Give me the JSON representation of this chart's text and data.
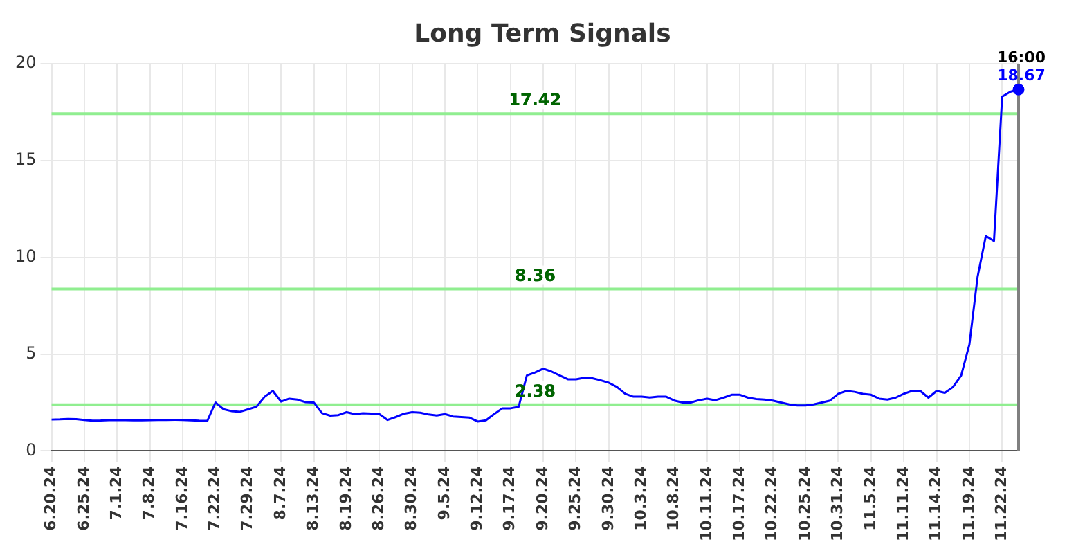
{
  "chart_data": {
    "type": "line",
    "title": "Long Term Signals",
    "categories": [
      "6.20.24",
      null,
      null,
      null,
      "6.25.24",
      null,
      null,
      null,
      "7.1.24",
      null,
      null,
      null,
      "7.8.24",
      null,
      null,
      null,
      "7.16.24",
      null,
      null,
      null,
      "7.22.24",
      null,
      null,
      null,
      "7.29.24",
      null,
      null,
      null,
      "8.7.24",
      null,
      null,
      null,
      "8.13.24",
      null,
      null,
      null,
      "8.19.24",
      null,
      null,
      null,
      "8.26.24",
      null,
      null,
      null,
      "8.30.24",
      null,
      null,
      null,
      "9.5.24",
      null,
      null,
      null,
      "9.12.24",
      null,
      null,
      null,
      "9.17.24",
      null,
      null,
      null,
      "9.20.24",
      null,
      null,
      null,
      "9.25.24",
      null,
      null,
      null,
      "9.30.24",
      null,
      null,
      null,
      "10.3.24",
      null,
      null,
      null,
      "10.8.24",
      null,
      null,
      null,
      "10.11.24",
      null,
      null,
      null,
      "10.17.24",
      null,
      null,
      null,
      "10.22.24",
      null,
      null,
      null,
      "10.25.24",
      null,
      null,
      null,
      "10.31.24",
      null,
      null,
      null,
      "11.5.24",
      null,
      null,
      null,
      "11.11.24",
      null,
      null,
      null,
      "11.14.24",
      null,
      null,
      null,
      "11.19.24",
      null,
      null,
      null,
      "11.22.24",
      null,
      null
    ],
    "series": [
      {
        "color": "#0000ff",
        "values": [
          1.62,
          1.63,
          1.65,
          1.64,
          1.6,
          1.56,
          1.57,
          1.59,
          1.6,
          1.59,
          1.58,
          1.58,
          1.59,
          1.6,
          1.6,
          1.61,
          1.6,
          1.58,
          1.56,
          1.55,
          2.5,
          2.15,
          2.05,
          2.02,
          2.15,
          2.28,
          2.8,
          3.1,
          2.55,
          2.7,
          2.65,
          2.52,
          2.5,
          1.95,
          1.82,
          1.85,
          2.0,
          1.9,
          1.95,
          1.93,
          1.9,
          1.6,
          1.75,
          1.92,
          2.0,
          1.97,
          1.88,
          1.83,
          1.9,
          1.78,
          1.75,
          1.72,
          1.52,
          1.58,
          1.9,
          2.2,
          2.2,
          2.28,
          3.9,
          4.05,
          4.25,
          4.1,
          3.9,
          3.7,
          3.7,
          3.78,
          3.75,
          3.65,
          3.52,
          3.3,
          2.95,
          2.8,
          2.8,
          2.76,
          2.8,
          2.8,
          2.6,
          2.5,
          2.5,
          2.62,
          2.7,
          2.62,
          2.75,
          2.9,
          2.9,
          2.75,
          2.68,
          2.65,
          2.6,
          2.5,
          2.4,
          2.35,
          2.35,
          2.4,
          2.5,
          2.6,
          2.95,
          3.1,
          3.05,
          2.95,
          2.9,
          2.7,
          2.65,
          2.75,
          2.95,
          3.1,
          3.1,
          2.75,
          3.1,
          3.0,
          3.3,
          3.9,
          5.5,
          9.0,
          11.1,
          10.85,
          18.3,
          18.55,
          18.67
        ],
        "value_labels": [
          null,
          null,
          null,
          null,
          null,
          null,
          null,
          null,
          null,
          null,
          null,
          null,
          null,
          null,
          null,
          null,
          null,
          null,
          null,
          null,
          null,
          null,
          null,
          null,
          null,
          null,
          null,
          null,
          null,
          null,
          null,
          null,
          null,
          null,
          null,
          null,
          null,
          null,
          null,
          null,
          null,
          null,
          null,
          null,
          null,
          null,
          null,
          null,
          null,
          null,
          null,
          null,
          null,
          null,
          null,
          null,
          null,
          null,
          null,
          null,
          null,
          null,
          null,
          null,
          null,
          null,
          null,
          null,
          null,
          null,
          null,
          null,
          null,
          null,
          null,
          null,
          null,
          null,
          null,
          null,
          null,
          null,
          null,
          null,
          null,
          null,
          null,
          null,
          null,
          null,
          null,
          null,
          null,
          null,
          null,
          null,
          null,
          null,
          null,
          null,
          null,
          null,
          null,
          null,
          null,
          null,
          null,
          null,
          null,
          null,
          null,
          null,
          null,
          null,
          null,
          null,
          null,
          null,
          "18.67"
        ]
      }
    ],
    "ylim": [
      0,
      20
    ],
    "yticks": [
      0,
      5,
      10,
      15,
      20
    ],
    "grid": true,
    "legend": false,
    "ref_lines": [
      {
        "axis": "y",
        "value": 17.42,
        "label": "17.42",
        "color": "#90ee90"
      },
      {
        "axis": "y",
        "value": 8.36,
        "label": "8.36",
        "color": "#90ee90"
      },
      {
        "axis": "y",
        "value": 2.38,
        "label": "2.38",
        "color": "#90ee90"
      }
    ],
    "annotations": [
      "16:00"
    ]
  }
}
